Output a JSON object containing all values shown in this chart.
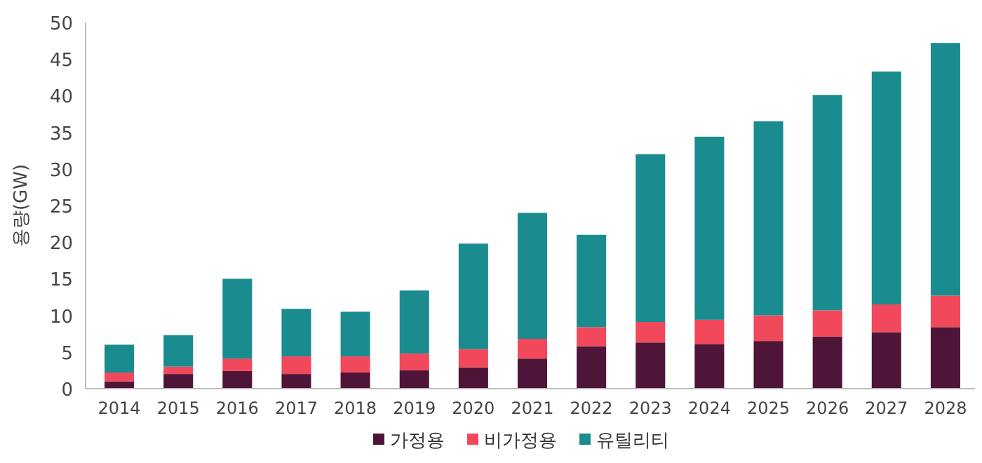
{
  "chart_data": {
    "type": "bar",
    "stacked": true,
    "ylabel": "용량(GW)",
    "legend": "bottom",
    "grid": false,
    "categories": [
      "2014",
      "2015",
      "2016",
      "2017",
      "2018",
      "2019",
      "2020",
      "2021",
      "2022",
      "2023",
      "2024",
      "2025",
      "2026",
      "2027",
      "2028"
    ],
    "ylim": [
      0,
      50
    ],
    "yticks": [
      0,
      5,
      10,
      15,
      20,
      25,
      30,
      35,
      40,
      45,
      50
    ],
    "series": [
      {
        "name": "가정용",
        "color": "#4f1538",
        "values": [
          1.0,
          2.0,
          2.4,
          2.0,
          2.2,
          2.5,
          2.9,
          4.1,
          5.8,
          6.3,
          6.1,
          6.5,
          7.1,
          7.7,
          8.4
        ]
      },
      {
        "name": "비가정용",
        "color": "#f2485b",
        "values": [
          1.2,
          1.0,
          1.7,
          2.4,
          2.2,
          2.3,
          2.5,
          2.7,
          2.6,
          2.8,
          3.3,
          3.5,
          3.6,
          3.8,
          4.3
        ]
      },
      {
        "name": "유틸리티",
        "color": "#1a8c8f",
        "values": [
          3.8,
          4.3,
          10.9,
          6.5,
          6.1,
          8.6,
          14.4,
          17.2,
          12.6,
          22.9,
          25.0,
          26.5,
          29.4,
          31.8,
          34.5
        ]
      }
    ]
  }
}
